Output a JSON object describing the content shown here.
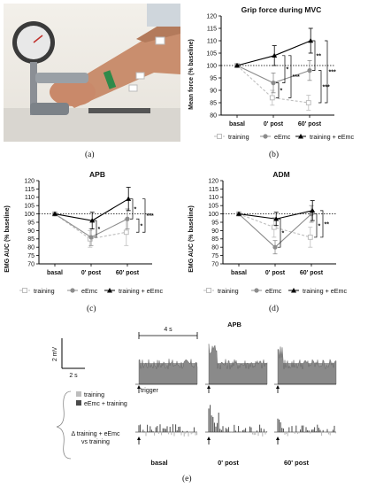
{
  "panel_labels": {
    "a": "(a)",
    "b": "(b)",
    "c": "(c)",
    "d": "(d)",
    "e": "(e)"
  },
  "legend": {
    "training": "training",
    "eemc": "eEmc",
    "combo": "training + eEmc"
  },
  "chart_data": [
    {
      "id": "grip",
      "type": "line",
      "title": "Grip force during MVC",
      "ylabel": "Mean force (% baseline)",
      "xlabel": "",
      "categories": [
        "basal",
        "0' post",
        "60' post"
      ],
      "ylim": [
        80,
        120
      ],
      "yticks": [
        80,
        85,
        90,
        95,
        100,
        105,
        110,
        115,
        120
      ],
      "reference_line": 100,
      "series": [
        {
          "name": "training",
          "values": [
            100,
            87,
            85
          ],
          "err": [
            0,
            3,
            3
          ],
          "color": "#bdbdbd",
          "marker": "square-open",
          "dash": "3,2"
        },
        {
          "name": "eEmc",
          "values": [
            100,
            93,
            98
          ],
          "err": [
            0,
            4,
            4
          ],
          "color": "#8c8c8c",
          "marker": "circle",
          "dash": ""
        },
        {
          "name": "training + eEmc",
          "values": [
            100,
            104,
            110
          ],
          "err": [
            0,
            4,
            5
          ],
          "color": "#000000",
          "marker": "triangle",
          "dash": ""
        }
      ],
      "significance": [
        {
          "cat": 1,
          "from": 87,
          "to": 93,
          "label": "*",
          "level": 0
        },
        {
          "cat": 1,
          "from": 93,
          "to": 104,
          "label": "*",
          "level": 1
        },
        {
          "cat": 1,
          "from": 87,
          "to": 104,
          "label": "***",
          "level": 2
        },
        {
          "cat": 2,
          "from": 98,
          "to": 110,
          "label": "**",
          "level": 0
        },
        {
          "cat": 2,
          "from": 85,
          "to": 98,
          "label": "***",
          "level": 1
        },
        {
          "cat": 2,
          "from": 85,
          "to": 110,
          "label": "***",
          "level": 2
        }
      ]
    },
    {
      "id": "apb",
      "type": "line",
      "title": "APB",
      "ylabel": "EMG AUC (% baseline)",
      "xlabel": "",
      "categories": [
        "basal",
        "0' post",
        "60' post"
      ],
      "ylim": [
        70,
        120
      ],
      "yticks": [
        70,
        75,
        80,
        85,
        90,
        95,
        100,
        105,
        110,
        115,
        120
      ],
      "reference_line": 100,
      "series": [
        {
          "name": "training",
          "values": [
            100,
            85,
            89
          ],
          "err": [
            0,
            5,
            8
          ],
          "color": "#bdbdbd",
          "marker": "square-open",
          "dash": "3,2"
        },
        {
          "name": "eEmc",
          "values": [
            100,
            86,
            97
          ],
          "err": [
            0,
            5,
            6
          ],
          "color": "#8c8c8c",
          "marker": "circle",
          "dash": ""
        },
        {
          "name": "training + eEmc",
          "values": [
            100,
            96,
            109
          ],
          "err": [
            0,
            5,
            7
          ],
          "color": "#000000",
          "marker": "triangle",
          "dash": ""
        }
      ],
      "significance": [
        {
          "cat": 1,
          "from": 86,
          "to": 96,
          "label": "*",
          "level": 0
        },
        {
          "cat": 2,
          "from": 97,
          "to": 109,
          "label": "*",
          "level": 0
        },
        {
          "cat": 2,
          "from": 89,
          "to": 97,
          "label": "*",
          "level": 1
        },
        {
          "cat": 2,
          "from": 89,
          "to": 109,
          "label": "***",
          "level": 2
        }
      ]
    },
    {
      "id": "adm",
      "type": "line",
      "title": "ADM",
      "ylabel": "EMG AUC (% baseline)",
      "xlabel": "",
      "categories": [
        "basal",
        "0' post",
        "60' post"
      ],
      "ylim": [
        70,
        120
      ],
      "yticks": [
        70,
        75,
        80,
        85,
        90,
        95,
        100,
        105,
        110,
        115,
        120
      ],
      "reference_line": 100,
      "series": [
        {
          "name": "training",
          "values": [
            100,
            92,
            86
          ],
          "err": [
            0,
            6,
            6
          ],
          "color": "#bdbdbd",
          "marker": "square-open",
          "dash": "3,2"
        },
        {
          "name": "eEmc",
          "values": [
            100,
            80,
            100
          ],
          "err": [
            0,
            4,
            5
          ],
          "color": "#8c8c8c",
          "marker": "circle",
          "dash": ""
        },
        {
          "name": "training + eEmc",
          "values": [
            100,
            97,
            102
          ],
          "err": [
            0,
            4,
            6
          ],
          "color": "#000000",
          "marker": "triangle",
          "dash": ""
        }
      ],
      "significance": [
        {
          "cat": 1,
          "from": 80,
          "to": 97,
          "label": "*",
          "level": 0
        },
        {
          "cat": 2,
          "from": 86,
          "to": 100,
          "label": "*",
          "level": 0
        },
        {
          "cat": 2,
          "from": 86,
          "to": 102,
          "label": "**",
          "level": 1
        }
      ]
    }
  ],
  "panel_e": {
    "title": "APB",
    "scale_y": "2 mV",
    "scale_x": "2 s",
    "window_label": "4 s",
    "trigger_label": "trigger",
    "legend_training": "training",
    "legend_combo": "eEmc + training",
    "diff_label_line1": "Δ training + eEmc",
    "diff_label_line2": "vs training",
    "conditions": [
      "basal",
      "0' post",
      "60' post"
    ]
  }
}
